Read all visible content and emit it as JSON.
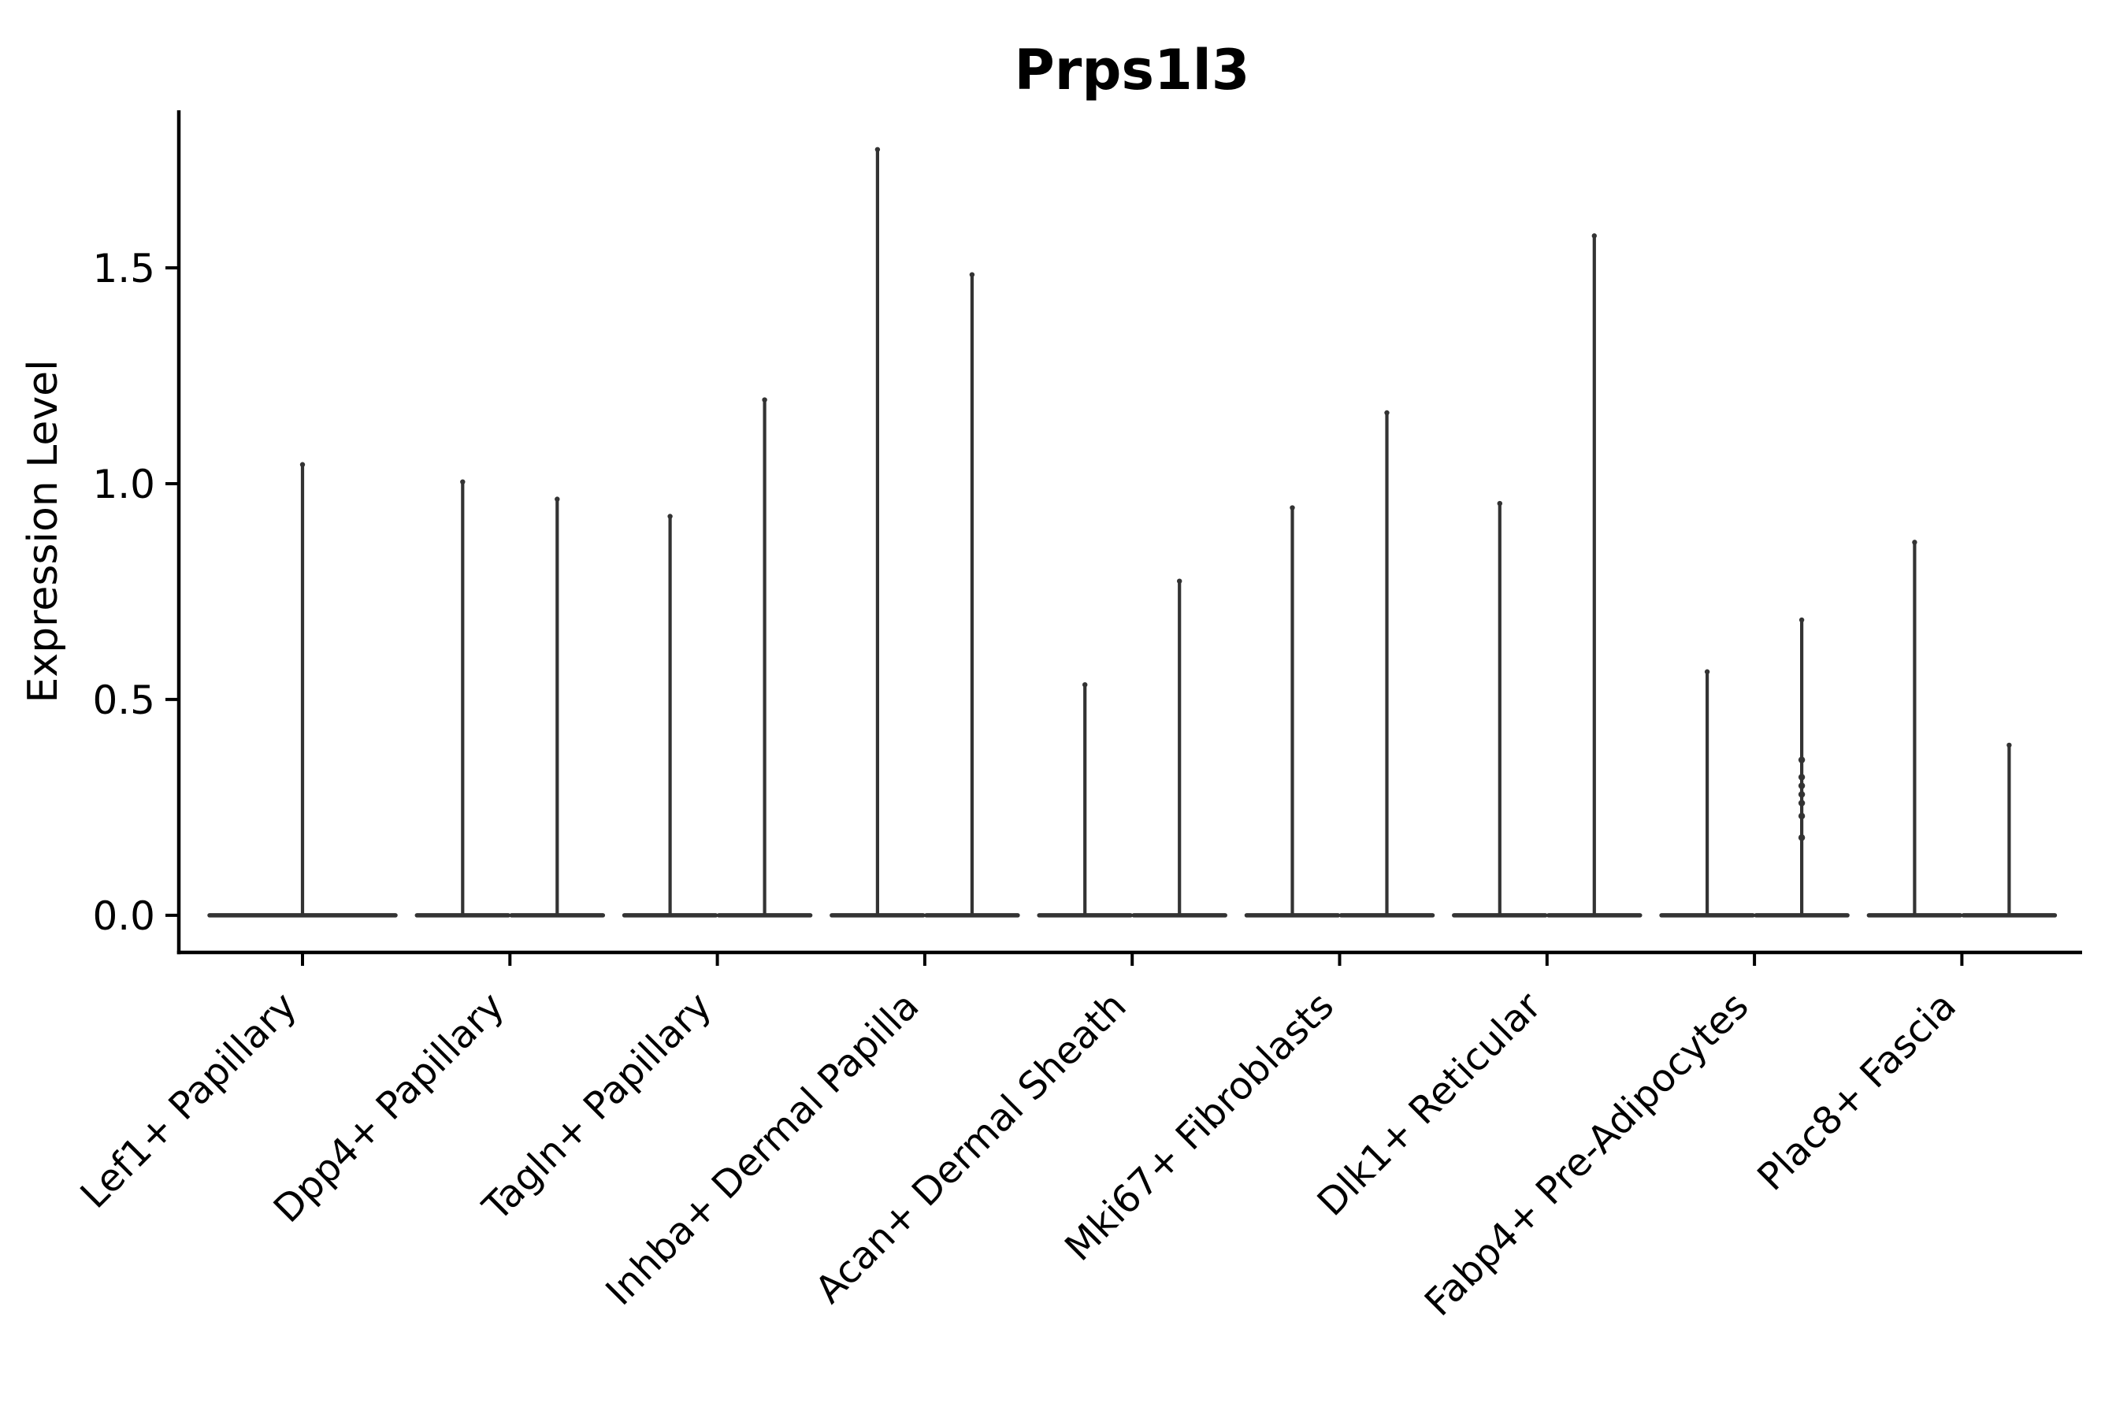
{
  "figure": {
    "background": "#ffffff",
    "violin_color": "#333333",
    "axis_color": "#000000",
    "text_color": "#000000"
  },
  "chart_data": {
    "type": "violin",
    "title": "Prps1l3",
    "xlabel": "",
    "ylabel": "Expression Level",
    "yticks": [
      0.0,
      0.5,
      1.0,
      1.5
    ],
    "ylim": [
      -0.086,
      1.865
    ],
    "grid": false,
    "legend": "none",
    "x_tick_rotation": 45,
    "categories": [
      "Lef1+ Papillary",
      "Dpp4+ Papillary",
      "Tagln+ Papillary",
      "Inhba+ Dermal Papilla",
      "Acan+ Dermal Sheath",
      "Mki67+ Fibroblasts",
      "Dlk1+ Reticular",
      "Fabp4+ Pre-Adipocytes",
      "Plac8+ Fascia"
    ],
    "violins": [
      {
        "category": "Lef1+ Papillary",
        "slot": "full",
        "max": 1.05,
        "points": []
      },
      {
        "category": "Dpp4+ Papillary",
        "slot": "left",
        "max": 1.01,
        "points": []
      },
      {
        "category": "Dpp4+ Papillary",
        "slot": "right",
        "max": 0.97,
        "points": []
      },
      {
        "category": "Tagln+ Papillary",
        "slot": "left",
        "max": 0.93,
        "points": []
      },
      {
        "category": "Tagln+ Papillary",
        "slot": "right",
        "max": 1.2,
        "points": []
      },
      {
        "category": "Inhba+ Dermal Papilla",
        "slot": "left",
        "max": 1.78,
        "points": []
      },
      {
        "category": "Inhba+ Dermal Papilla",
        "slot": "right",
        "max": 1.49,
        "points": []
      },
      {
        "category": "Acan+ Dermal Sheath",
        "slot": "left",
        "max": 0.54,
        "points": []
      },
      {
        "category": "Acan+ Dermal Sheath",
        "slot": "right",
        "max": 0.78,
        "points": []
      },
      {
        "category": "Mki67+ Fibroblasts",
        "slot": "left",
        "max": 0.95,
        "points": []
      },
      {
        "category": "Mki67+ Fibroblasts",
        "slot": "right",
        "max": 1.17,
        "points": []
      },
      {
        "category": "Dlk1+ Reticular",
        "slot": "left",
        "max": 0.96,
        "points": []
      },
      {
        "category": "Dlk1+ Reticular",
        "slot": "right",
        "max": 1.58,
        "points": []
      },
      {
        "category": "Fabp4+ Pre-Adipocytes",
        "slot": "left",
        "max": 0.57,
        "points": []
      },
      {
        "category": "Fabp4+ Pre-Adipocytes",
        "slot": "right",
        "max": 0.69,
        "points": [
          0.36,
          0.32,
          0.3,
          0.28,
          0.26,
          0.23,
          0.18
        ]
      },
      {
        "category": "Plac8+ Fascia",
        "slot": "left",
        "max": 0.87,
        "points": []
      },
      {
        "category": "Plac8+ Fascia",
        "slot": "right",
        "max": 0.4,
        "points": []
      }
    ]
  }
}
